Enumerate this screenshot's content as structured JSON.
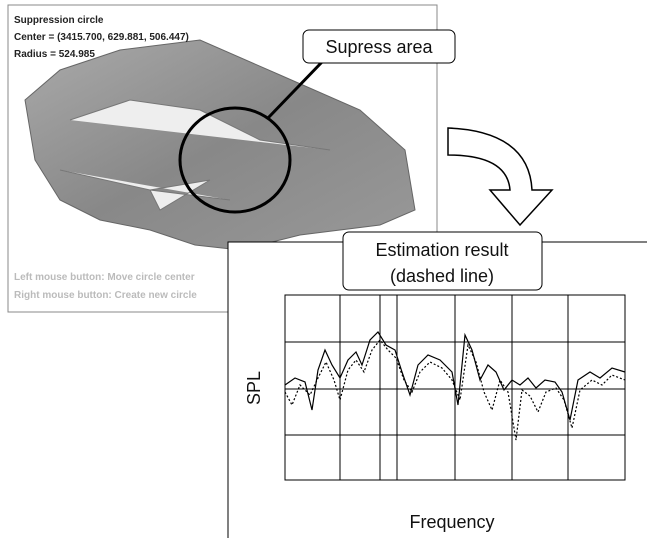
{
  "screenshot": {
    "title": "Suppression circle",
    "center": "Center = (3415.700, 629.881, 506.447)",
    "radius": "Radius = 524.985",
    "hint_left": "Left mouse button: Move circle center",
    "hint_right": "Right mouse button: Create new circle"
  },
  "callouts": {
    "area": "Supress area",
    "result_line1": "Estimation result",
    "result_line2": "(dashed line)"
  },
  "plot": {
    "ylabel": "SPL",
    "xlabel": "Frequency"
  }
}
